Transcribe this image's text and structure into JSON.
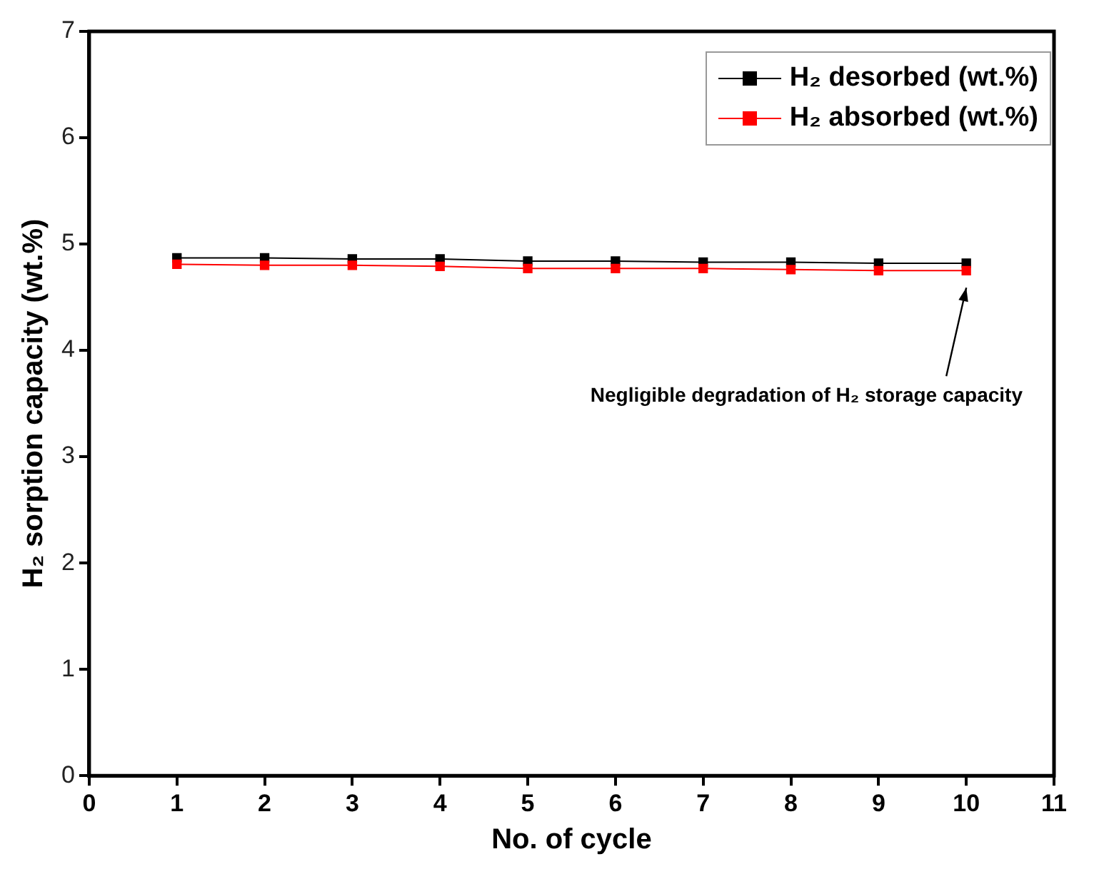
{
  "chart_data": {
    "type": "line",
    "xlabel": "No. of cycle",
    "ylabel": "H₂ sorption capacity (wt.%)",
    "x": [
      1,
      2,
      3,
      4,
      5,
      6,
      7,
      8,
      9,
      10
    ],
    "series": [
      {
        "name": "H₂ desorbed (wt.%)",
        "color": "#000000",
        "values": [
          4.87,
          4.87,
          4.86,
          4.86,
          4.84,
          4.84,
          4.83,
          4.83,
          4.82,
          4.82
        ]
      },
      {
        "name": "H₂ absorbed (wt.%)",
        "color": "#ff0000",
        "values": [
          4.81,
          4.8,
          4.8,
          4.79,
          4.77,
          4.77,
          4.77,
          4.76,
          4.75,
          4.75
        ]
      }
    ],
    "annotations": [
      "Negligible degradation of H₂ storage capacity"
    ],
    "xlim": [
      0,
      11
    ],
    "xticks": [
      0,
      1,
      2,
      3,
      4,
      5,
      6,
      7,
      8,
      9,
      10,
      11
    ],
    "ylim": [
      0,
      7
    ],
    "yticks": [
      0,
      1,
      2,
      3,
      4,
      5,
      6,
      7
    ],
    "grid": false,
    "legend": "top right",
    "marker": "square",
    "line_style": "solid"
  }
}
